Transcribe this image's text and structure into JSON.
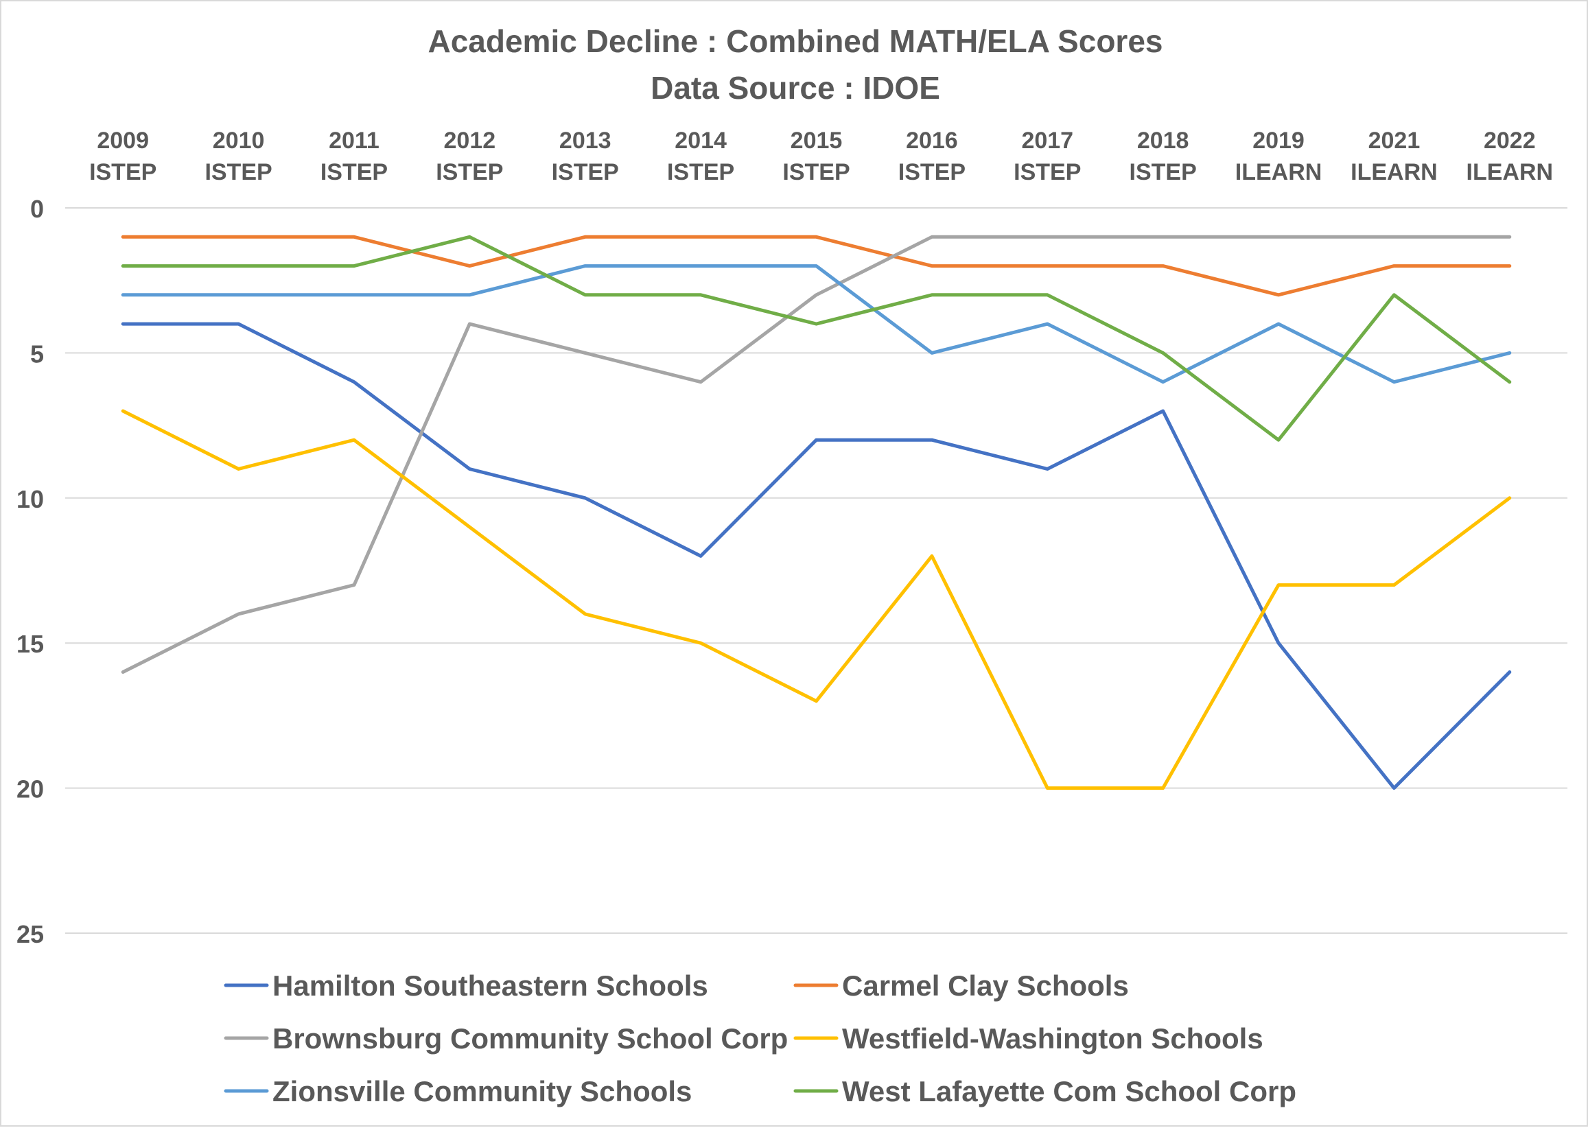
{
  "chart_data": {
    "type": "line",
    "title": "Academic Decline : Combined MATH/ELA Scores",
    "subtitle": "Data Source : IDOE",
    "categories": [
      [
        "2009",
        "ISTEP"
      ],
      [
        "2010",
        "ISTEP"
      ],
      [
        "2011",
        "ISTEP"
      ],
      [
        "2012",
        "ISTEP"
      ],
      [
        "2013",
        "ISTEP"
      ],
      [
        "2014",
        "ISTEP"
      ],
      [
        "2015",
        "ISTEP"
      ],
      [
        "2016",
        "ISTEP"
      ],
      [
        "2017",
        "ISTEP"
      ],
      [
        "2018",
        "ISTEP"
      ],
      [
        "2019",
        "ILEARN"
      ],
      [
        "2021",
        "ILEARN"
      ],
      [
        "2022",
        "ILEARN"
      ]
    ],
    "y_axis": {
      "min": 0,
      "max": 25,
      "reversed": true,
      "ticks": [
        0,
        5,
        10,
        15,
        20,
        25
      ],
      "tick_labels": [
        "0",
        "5",
        "10",
        "15",
        "20",
        "25"
      ],
      "gridlines": true
    },
    "x_axis_position": "top",
    "legend_position": "bottom",
    "series": [
      {
        "name": "Hamilton Southeastern Schools",
        "color": "#4472C4",
        "values": [
          4,
          4,
          6,
          9,
          10,
          12,
          8,
          8,
          9,
          7,
          15,
          20,
          16
        ]
      },
      {
        "name": "Carmel Clay Schools",
        "color": "#ED7D31",
        "values": [
          1,
          1,
          1,
          2,
          1,
          1,
          1,
          2,
          2,
          2,
          3,
          2,
          2
        ]
      },
      {
        "name": "Brownsburg Community School Corp",
        "color": "#A5A5A5",
        "values": [
          16,
          14,
          13,
          4,
          5,
          6,
          3,
          1,
          1,
          1,
          1,
          1,
          1
        ]
      },
      {
        "name": "Westfield-Washington Schools",
        "color": "#FFC000",
        "values": [
          7,
          9,
          8,
          11,
          14,
          15,
          17,
          12,
          20,
          20,
          13,
          13,
          10
        ]
      },
      {
        "name": "Zionsville Community Schools",
        "color": "#5B9BD5",
        "values": [
          3,
          3,
          3,
          3,
          2,
          2,
          2,
          5,
          4,
          6,
          4,
          6,
          5
        ]
      },
      {
        "name": "West Lafayette Com School Corp",
        "color": "#70AD47",
        "values": [
          2,
          2,
          2,
          1,
          3,
          3,
          4,
          3,
          3,
          5,
          8,
          3,
          6
        ]
      }
    ]
  },
  "colors": {
    "gridline": "#D9D9D9",
    "text": "#595959",
    "border": "#D9D9D9",
    "background": "#FFFFFF"
  }
}
